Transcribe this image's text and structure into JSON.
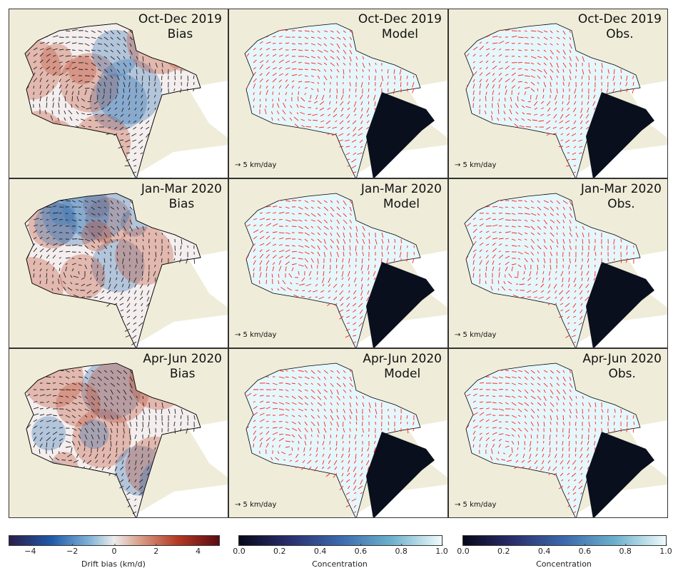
{
  "panels": [
    {
      "period": "Oct-Dec 2019",
      "kind": "Bias"
    },
    {
      "period": "Oct-Dec 2019",
      "kind": "Model"
    },
    {
      "period": "Oct-Dec 2019",
      "kind": "Obs."
    },
    {
      "period": "Jan-Mar 2020",
      "kind": "Bias"
    },
    {
      "period": "Jan-Mar 2020",
      "kind": "Model"
    },
    {
      "period": "Jan-Mar 2020",
      "kind": "Obs."
    },
    {
      "period": "Apr-Jun 2020",
      "kind": "Bias"
    },
    {
      "period": "Apr-Jun 2020",
      "kind": "Model"
    },
    {
      "period": "Apr-Jun 2020",
      "kind": "Obs."
    }
  ],
  "scale_label": "→ 5 km/day",
  "colorbars": [
    {
      "label": "Drift bias (km/d)",
      "ticks": [
        "−4",
        "−2",
        "0",
        "2",
        "4"
      ],
      "range": [
        -5,
        5
      ],
      "values": [
        -4,
        -2,
        0,
        2,
        4
      ]
    },
    {
      "label": "Concentration",
      "ticks": [
        "0.0",
        "0.2",
        "0.4",
        "0.6",
        "0.8",
        "1.0"
      ],
      "range": [
        0,
        1
      ],
      "values": [
        0,
        0.2,
        0.4,
        0.6,
        0.8,
        1.0
      ]
    },
    {
      "label": "Concentration",
      "ticks": [
        "0.0",
        "0.2",
        "0.4",
        "0.6",
        "0.8",
        "1.0"
      ],
      "range": [
        0,
        1
      ],
      "values": [
        0,
        0.2,
        0.4,
        0.6,
        0.8,
        1.0
      ]
    }
  ],
  "colors": {
    "land": "#efecd9",
    "ice": "#e6f7fb",
    "arrow": "#ff2020",
    "open_water": "#0a0f1e"
  }
}
